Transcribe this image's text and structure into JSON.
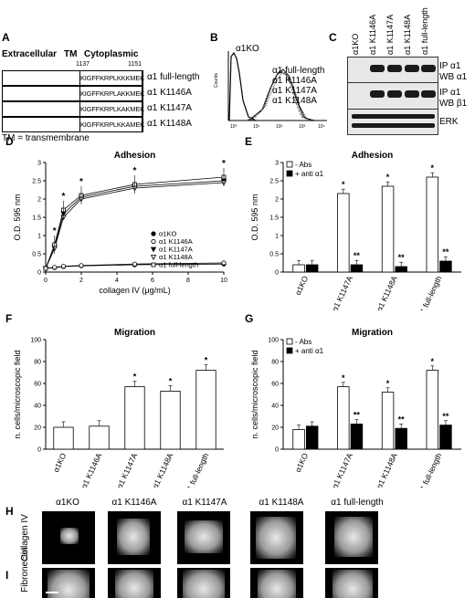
{
  "panel_labels": {
    "A": "A",
    "B": "B",
    "C": "C",
    "D": "D",
    "E": "E",
    "F": "F",
    "G": "G",
    "H": "H",
    "I": "I"
  },
  "panelA": {
    "header_extracellular": "Extracellular",
    "header_tm": "TM",
    "header_cytoplasmic": "Cytoplasmic",
    "pos_start": "1137",
    "pos_end": "1151",
    "rows": [
      {
        "seq": "KIGFFKRPLKKKMEK",
        "name": "α1 full-length"
      },
      {
        "seq": "KIGFFKRPLAKKMEK",
        "name": "α1 K1146A"
      },
      {
        "seq": "KIGFFKRPLKAKMEK",
        "name": "α1 K1147A"
      },
      {
        "seq": "KIGFFKRPLKKAMEK",
        "name": "α1 K1148A"
      }
    ],
    "footnote": "TM = transmembrane"
  },
  "panelB": {
    "ylabel": "Counts",
    "legend_ko": "α1KO",
    "legend": [
      "α1 full-length",
      "α1 K1146A",
      "α1 K1147A",
      "α1 K1148A"
    ]
  },
  "panelC": {
    "lanes": [
      "α1KO",
      "α1 K1146A",
      "α1 K1147A",
      "α1 K1148A",
      "α1 full-length"
    ],
    "blot_labels": [
      [
        "IP α1",
        "WB α1"
      ],
      [
        "IP α1",
        "WB β1"
      ],
      [
        "ERK"
      ]
    ]
  },
  "chart_data": [
    {
      "type": "line",
      "panel": "D",
      "title": "Adhesion",
      "xlabel": "collagen IV (μg/mL)",
      "ylabel": "O.D. 595 nm",
      "ylim": [
        0,
        3
      ],
      "xlim": [
        0,
        10
      ],
      "x_ticks": [
        0,
        2,
        4,
        6,
        8,
        10
      ],
      "y_ticks": [
        0,
        0.5,
        1,
        1.5,
        2,
        2.5,
        3
      ],
      "x": [
        0,
        0.5,
        1,
        2,
        5,
        10
      ],
      "series": [
        {
          "name": "α1KO",
          "values": [
            0.1,
            0.12,
            0.15,
            0.17,
            0.2,
            0.22
          ]
        },
        {
          "name": "α1 K1146A",
          "values": [
            0.1,
            0.13,
            0.16,
            0.18,
            0.22,
            0.25
          ]
        },
        {
          "name": "α1 K1147A",
          "values": [
            0.1,
            0.7,
            1.6,
            2.05,
            2.35,
            2.5
          ]
        },
        {
          "name": "α1 K1148A",
          "values": [
            0.1,
            0.65,
            1.5,
            2.0,
            2.3,
            2.45
          ]
        },
        {
          "name": "α1 full-length",
          "values": [
            0.1,
            0.75,
            1.7,
            2.1,
            2.4,
            2.6
          ]
        }
      ],
      "annotations": [
        "*",
        "*",
        "*",
        "*",
        "*"
      ]
    },
    {
      "type": "bar",
      "panel": "E",
      "title": "Adhesion",
      "ylabel": "O.D. 595 nm",
      "ylim": [
        0,
        3
      ],
      "y_ticks": [
        0,
        0.5,
        1,
        1.5,
        2,
        2.5,
        3
      ],
      "categories": [
        "α1KO",
        "α1 K1147A",
        "α1 K1148A",
        "α1 full-length"
      ],
      "series": [
        {
          "name": "- Abs",
          "values": [
            0.2,
            2.15,
            2.35,
            2.6
          ]
        },
        {
          "name": "+ anti α1",
          "values": [
            0.2,
            0.2,
            0.15,
            0.3
          ]
        }
      ],
      "annotations_top": [
        "",
        "*",
        "*",
        "*"
      ],
      "annotations_bottom": [
        "",
        "**",
        "**",
        "**"
      ]
    },
    {
      "type": "bar",
      "panel": "F",
      "title": "Migration",
      "ylabel": "n. cells/microscopic field",
      "ylim": [
        0,
        100
      ],
      "y_ticks": [
        0,
        20,
        40,
        60,
        80,
        100
      ],
      "categories": [
        "α1KO",
        "α1 K1146A",
        "α1 K1147A",
        "α1 K1148A",
        "α1 full-length"
      ],
      "values": [
        20,
        21,
        57,
        53,
        72
      ],
      "annotations": [
        "",
        "",
        "*",
        "*",
        "*"
      ]
    },
    {
      "type": "bar",
      "panel": "G",
      "title": "Migration",
      "ylabel": "n. cells/microscopic field",
      "ylim": [
        0,
        100
      ],
      "y_ticks": [
        0,
        20,
        40,
        60,
        80,
        100
      ],
      "categories": [
        "α1KO",
        "α1 K1147A",
        "α1 K1148A",
        "α1 full-length"
      ],
      "series": [
        {
          "name": "- Abs",
          "values": [
            18,
            57,
            52,
            72
          ]
        },
        {
          "name": "+ anti α1",
          "values": [
            21,
            23,
            19,
            22
          ]
        }
      ],
      "annotations_top": [
        "",
        "*",
        "*",
        "*"
      ],
      "annotations_bottom": [
        "",
        "**",
        "**",
        "**"
      ]
    }
  ],
  "panelHI": {
    "columns": [
      "α1KO",
      "α1 K1146A",
      "α1 K1147A",
      "α1 K1148A",
      "α1 full-length"
    ],
    "row_h": "Collagen IV",
    "row_i": "Fibronectin"
  }
}
